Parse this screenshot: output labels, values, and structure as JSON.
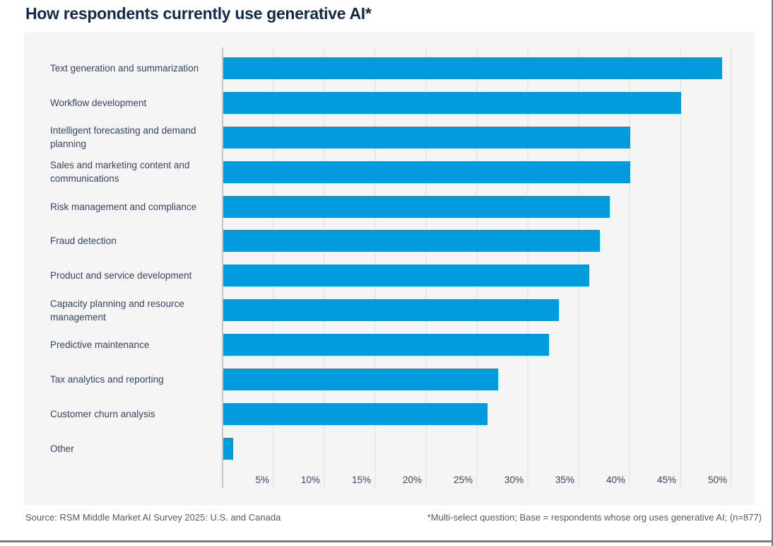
{
  "title": "How respondents currently use generative AI*",
  "footer": {
    "source": "Source: RSM Middle Market AI Survey 2025: U.S. and Canada",
    "note": "*Multi-select question; Base = respondents whose org uses generative AI; (n=877)"
  },
  "colors": {
    "bar": "#009CDE",
    "title_text": "#13294B",
    "panel_background": "#F5F5F6",
    "label_text": "#35455F",
    "gridline": "#E9E9E9",
    "axis_line": "#C6C6C6",
    "footer_text": "#595959",
    "frame_rule": "#7B7B7B"
  },
  "chart_data": {
    "type": "bar",
    "orientation": "horizontal",
    "title": "How respondents currently use generative AI*",
    "categories": [
      "Text generation and summarization",
      "Workflow development",
      "Intelligent forecasting and demand planning",
      "Sales and marketing content and communications",
      "Risk management and compliance",
      "Fraud detection",
      "Product and service development",
      "Capacity planning and resource management",
      "Predictive maintenance",
      "Tax analytics and reporting",
      "Customer churn analysis",
      "Other"
    ],
    "values": [
      49,
      45,
      40,
      40,
      38,
      37,
      36,
      33,
      32,
      27,
      26,
      1
    ],
    "unit": "%",
    "x_ticks": [
      "5%",
      "10%",
      "15%",
      "20%",
      "25%",
      "30%",
      "35%",
      "40%",
      "45%",
      "50%"
    ],
    "x_tick_values": [
      5,
      10,
      15,
      20,
      25,
      30,
      35,
      40,
      45,
      50
    ],
    "xlim": [
      0,
      52.3
    ],
    "grid": true,
    "legend": false,
    "xlabel": "",
    "ylabel": ""
  }
}
